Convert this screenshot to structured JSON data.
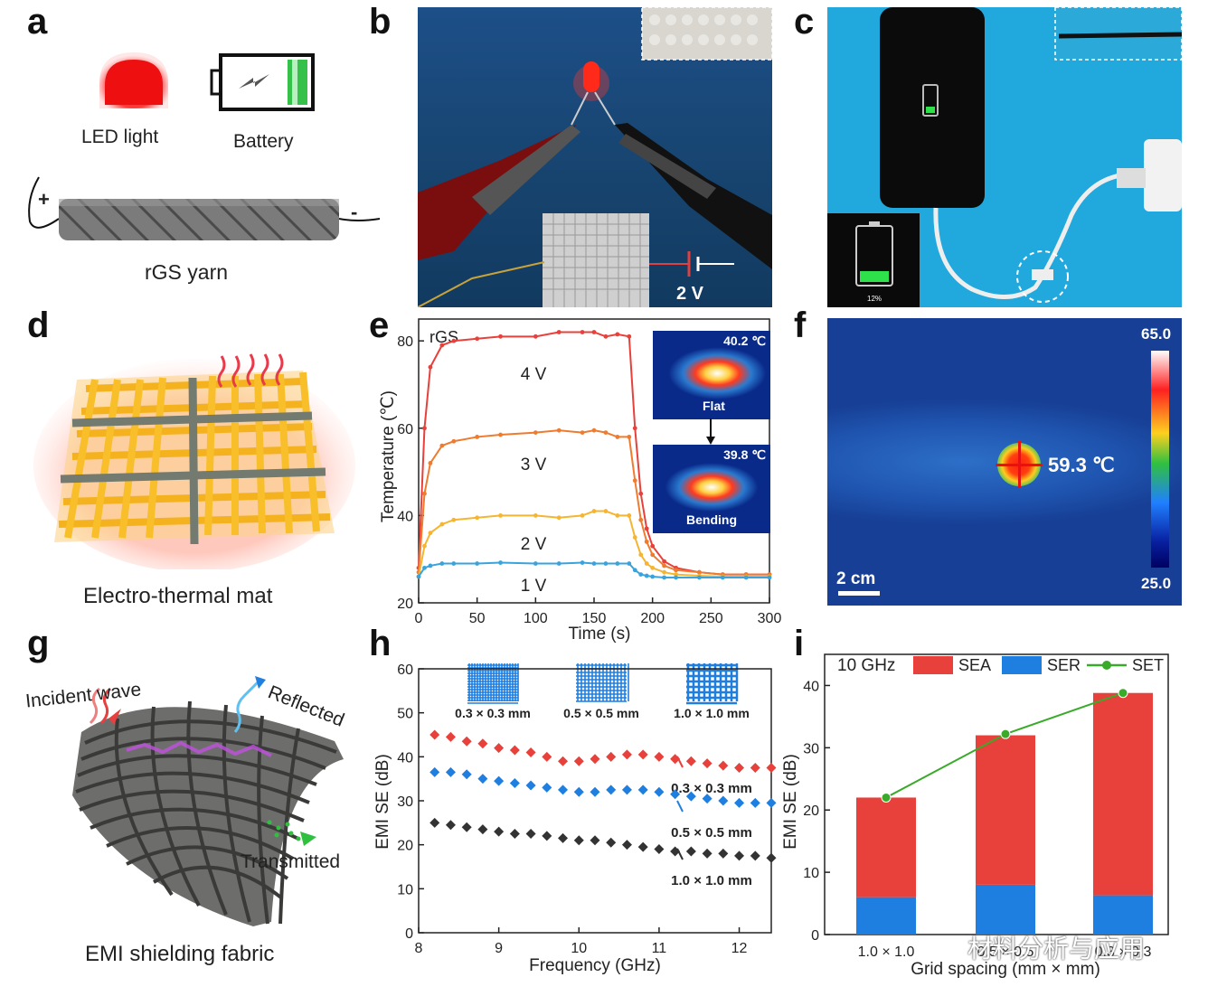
{
  "panel_labels": {
    "a": "a",
    "b": "b",
    "c": "c",
    "d": "d",
    "e": "e",
    "f": "f",
    "g": "g",
    "h": "h",
    "i": "i"
  },
  "panel_a": {
    "led_label": "LED light",
    "battery_label": "Battery",
    "yarn_label": "rGS yarn",
    "plus": "+",
    "minus": "-"
  },
  "panel_b": {
    "voltage": "2 V"
  },
  "panel_c": {
    "percent": "12%"
  },
  "panel_d": {
    "caption": "Electro-thermal mat"
  },
  "panel_e_inset": {
    "flat_temp": "40.2 ℃",
    "flat_label": "Flat",
    "bend_temp": "39.8 ℃",
    "bend_label": "Bending"
  },
  "panel_f": {
    "temp": "59.3 ℃",
    "scale_max": "65.0",
    "scale_min": "25.0",
    "scalebar": "2 cm"
  },
  "panel_g": {
    "incident": "Incident wave",
    "reflected": "Reflected",
    "transmitted": "Transmitted",
    "caption": "EMI shielding fabric"
  },
  "panel_h_legend": [
    "0.3 × 0.3 mm",
    "0.5 × 0.5 mm",
    "1.0 × 1.0 mm"
  ],
  "watermark": "材料分析与应用",
  "colors": {
    "red": "#e8403a",
    "blue": "#1e7fe0",
    "orange": "#ee7b2e",
    "yellow": "#f5b530",
    "lightblue": "#3aa3dc",
    "black": "#333333",
    "green": "#3aaa2a"
  },
  "chart_data": [
    {
      "id": "e",
      "type": "line",
      "title": "rGS",
      "xlabel": "Time (s)",
      "ylabel": "Temperature (℃)",
      "xlim": [
        0,
        300
      ],
      "ylim": [
        20,
        85
      ],
      "xticks": [
        0,
        50,
        100,
        150,
        200,
        250,
        300
      ],
      "yticks": [
        20,
        40,
        60,
        80
      ],
      "series": [
        {
          "name": "4 V",
          "color": "#e8403a",
          "x": [
            0,
            5,
            10,
            20,
            30,
            50,
            70,
            100,
            120,
            140,
            150,
            160,
            170,
            180,
            185,
            190,
            195,
            200,
            210,
            220,
            240,
            260,
            280,
            300
          ],
          "y": [
            28,
            60,
            74,
            79,
            80,
            80.5,
            81,
            81,
            82,
            82,
            82,
            81,
            81.5,
            81,
            60,
            45,
            37,
            33,
            29.5,
            28,
            27,
            26.5,
            26.5,
            26.5
          ]
        },
        {
          "name": "3 V",
          "color": "#ee7b2e",
          "x": [
            0,
            5,
            10,
            20,
            30,
            50,
            70,
            100,
            120,
            140,
            150,
            160,
            170,
            180,
            185,
            190,
            195,
            200,
            210,
            220,
            240,
            260,
            280,
            300
          ],
          "y": [
            27,
            45,
            52,
            56,
            57,
            58,
            58.5,
            59,
            59.5,
            59,
            59.5,
            59,
            58,
            58,
            48,
            39,
            34,
            31,
            28.5,
            27.5,
            27,
            26.5,
            26.5,
            26.5
          ]
        },
        {
          "name": "2 V",
          "color": "#f5b530",
          "x": [
            0,
            5,
            10,
            20,
            30,
            50,
            70,
            100,
            120,
            140,
            150,
            160,
            170,
            180,
            185,
            190,
            195,
            200,
            210,
            220,
            240,
            260,
            280,
            300
          ],
          "y": [
            26,
            33,
            36,
            38,
            39,
            39.5,
            40,
            40,
            39.5,
            40,
            41,
            41,
            40,
            40,
            35,
            31,
            29,
            28,
            27,
            26.5,
            26.2,
            26,
            26,
            26
          ]
        },
        {
          "name": "1 V",
          "color": "#3aa3dc",
          "x": [
            0,
            5,
            10,
            20,
            30,
            50,
            70,
            100,
            120,
            140,
            150,
            160,
            170,
            180,
            185,
            190,
            195,
            200,
            210,
            220,
            240,
            260,
            280,
            300
          ],
          "y": [
            26,
            28,
            28.5,
            29,
            29,
            29,
            29.2,
            29,
            29,
            29.2,
            29,
            29,
            29,
            29,
            27.5,
            26.5,
            26.2,
            26,
            25.8,
            25.8,
            25.8,
            25.8,
            25.8,
            25.8
          ]
        }
      ]
    },
    {
      "id": "h",
      "type": "scatter",
      "xlabel": "Frequency (GHz)",
      "ylabel": "EMI SE (dB)",
      "xlim": [
        8,
        12.4
      ],
      "ylim": [
        0,
        60
      ],
      "xticks": [
        8,
        9,
        10,
        11,
        12
      ],
      "yticks": [
        0,
        10,
        20,
        30,
        40,
        50,
        60
      ],
      "series": [
        {
          "name": "0.3 × 0.3 mm",
          "color": "#e8403a",
          "x": [
            8.2,
            8.4,
            8.6,
            8.8,
            9.0,
            9.2,
            9.4,
            9.6,
            9.8,
            10.0,
            10.2,
            10.4,
            10.6,
            10.8,
            11.0,
            11.2,
            11.4,
            11.6,
            11.8,
            12.0,
            12.2,
            12.4
          ],
          "y": [
            45,
            44.5,
            43.5,
            43,
            42,
            41.5,
            41,
            40,
            39,
            39,
            39.5,
            40,
            40.5,
            40.5,
            40,
            39.5,
            39,
            38.5,
            38,
            37.5,
            37.5,
            37.5
          ]
        },
        {
          "name": "0.5 × 0.5 mm",
          "color": "#1e7fe0",
          "x": [
            8.2,
            8.4,
            8.6,
            8.8,
            9.0,
            9.2,
            9.4,
            9.6,
            9.8,
            10.0,
            10.2,
            10.4,
            10.6,
            10.8,
            11.0,
            11.2,
            11.4,
            11.6,
            11.8,
            12.0,
            12.2,
            12.4
          ],
          "y": [
            36.5,
            36.5,
            36,
            35,
            34.5,
            34,
            33.5,
            33,
            32.5,
            32,
            32,
            32.5,
            32.5,
            32.5,
            32,
            31.5,
            31,
            30.5,
            30,
            29.5,
            29.5,
            29.5
          ]
        },
        {
          "name": "1.0 × 1.0 mm",
          "color": "#333333",
          "x": [
            8.2,
            8.4,
            8.6,
            8.8,
            9.0,
            9.2,
            9.4,
            9.6,
            9.8,
            10.0,
            10.2,
            10.4,
            10.6,
            10.8,
            11.0,
            11.2,
            11.4,
            11.6,
            11.8,
            12.0,
            12.2,
            12.4
          ],
          "y": [
            25,
            24.5,
            24,
            23.5,
            23,
            22.5,
            22.5,
            22,
            21.5,
            21,
            21,
            20.5,
            20,
            19.5,
            19,
            18.5,
            18.5,
            18,
            18,
            17.5,
            17.5,
            17
          ]
        }
      ]
    },
    {
      "id": "i",
      "type": "bar",
      "annotation": "10 GHz",
      "xlabel": "Grid spacing (mm × mm)",
      "ylabel": "EMI SE (dB)",
      "ylim": [
        0,
        45
      ],
      "yticks": [
        0,
        10,
        20,
        30,
        40
      ],
      "categories": [
        "1.0 × 1.0",
        "0.5 × 0.5",
        "0.3 × 0.3"
      ],
      "series": [
        {
          "name": "SEA",
          "color": "#e8403a",
          "values": [
            16,
            24,
            32.5
          ]
        },
        {
          "name": "SER",
          "color": "#1e7fe0",
          "values": [
            6,
            8,
            6.3
          ]
        },
        {
          "name": "SET",
          "color": "#3aaa2a",
          "values": [
            22,
            32.2,
            38.8
          ]
        }
      ]
    }
  ]
}
